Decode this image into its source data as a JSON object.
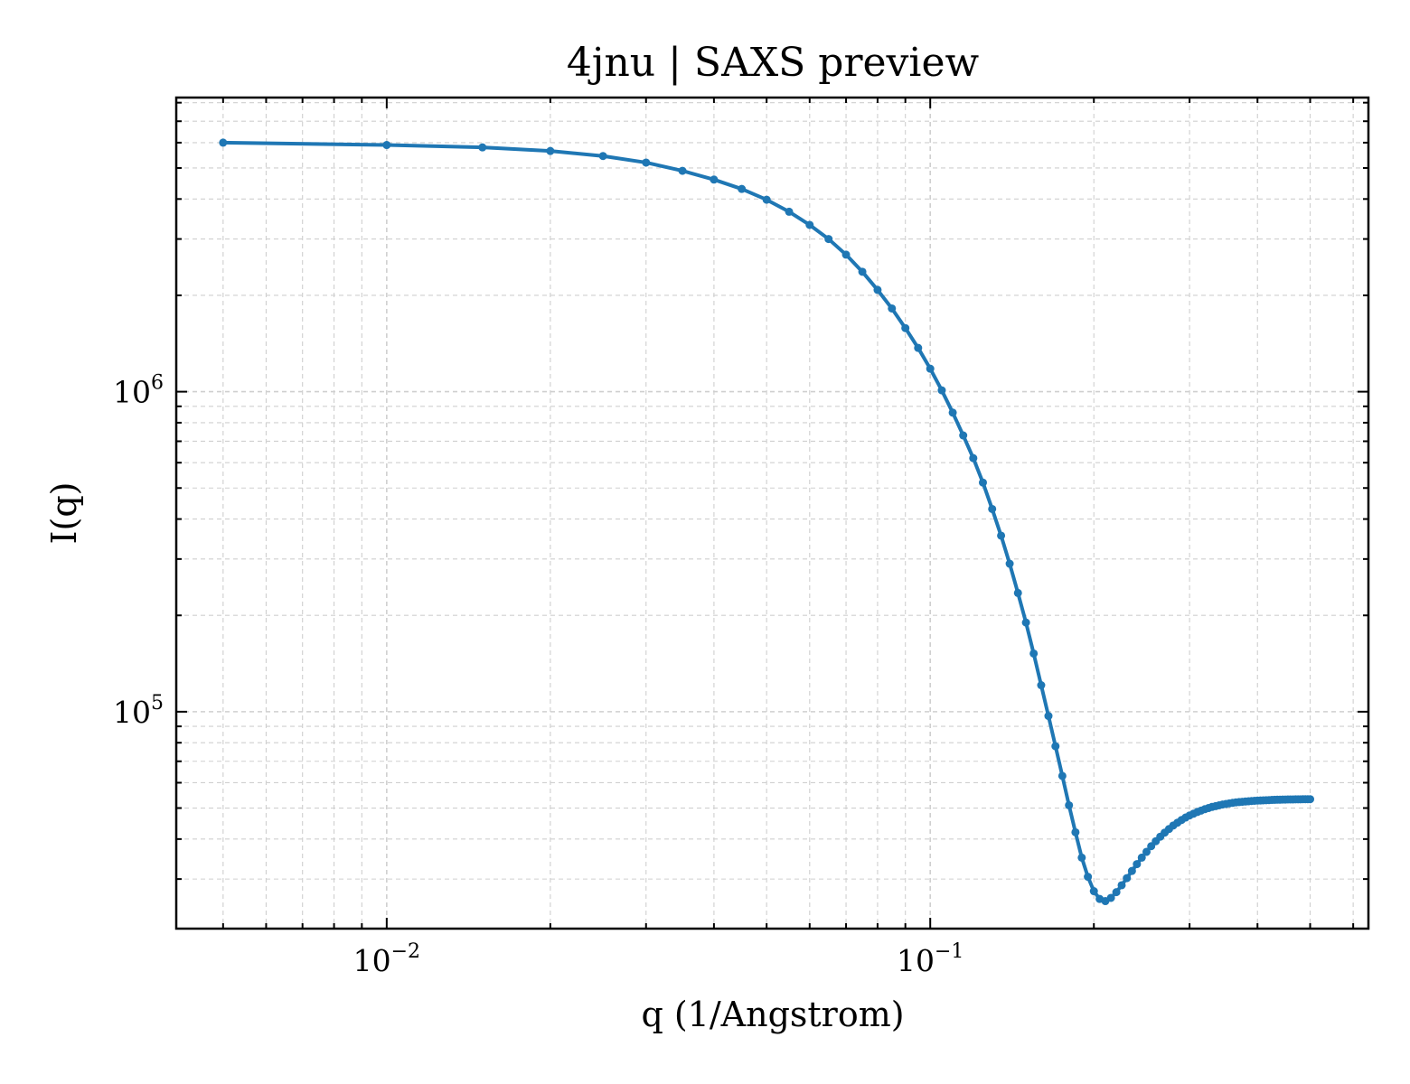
{
  "chart_data": {
    "type": "line",
    "title": "4jnu | SAXS preview",
    "xlabel": "q (1/Angstrom)",
    "ylabel": "I(q)",
    "xscale": "log",
    "yscale": "log",
    "xlim": [
      0.0041,
      0.64
    ],
    "ylim": [
      21000,
      8300000
    ],
    "grid": true,
    "legend": "none",
    "x_ticks": [
      {
        "value": 0.01,
        "base": "10",
        "exp": "−2"
      },
      {
        "value": 0.1,
        "base": "10",
        "exp": "−1"
      }
    ],
    "y_ticks": [
      {
        "value": 100000,
        "base": "10",
        "exp": "5"
      },
      {
        "value": 1000000,
        "base": "10",
        "exp": "6"
      }
    ],
    "series": [
      {
        "color": "#1f77b4",
        "marker": "circle",
        "x": [
          0.005,
          0.01,
          0.015,
          0.02,
          0.025,
          0.03,
          0.035,
          0.04,
          0.045,
          0.05,
          0.055,
          0.06,
          0.065,
          0.07,
          0.075,
          0.08,
          0.085,
          0.09,
          0.095,
          0.1,
          0.105,
          0.11,
          0.115,
          0.12,
          0.125,
          0.13,
          0.135,
          0.14,
          0.145,
          0.15,
          0.155,
          0.16,
          0.165,
          0.17,
          0.175,
          0.18,
          0.185,
          0.19,
          0.195,
          0.2,
          0.205,
          0.21,
          0.215,
          0.22,
          0.225,
          0.23,
          0.235,
          0.24,
          0.245,
          0.25,
          0.255,
          0.26,
          0.265,
          0.27,
          0.275,
          0.28,
          0.285,
          0.29,
          0.295,
          0.3,
          0.305,
          0.31,
          0.315,
          0.32,
          0.325,
          0.33,
          0.335,
          0.34,
          0.345,
          0.35,
          0.355,
          0.36,
          0.365,
          0.37,
          0.375,
          0.38,
          0.385,
          0.39,
          0.395,
          0.4,
          0.405,
          0.41,
          0.415,
          0.42,
          0.425,
          0.43,
          0.435,
          0.44,
          0.445,
          0.45,
          0.455,
          0.46,
          0.465,
          0.47,
          0.475,
          0.48,
          0.485,
          0.49,
          0.495,
          0.5
        ],
        "y": [
          6000000,
          5900000,
          5800000,
          5650000,
          5450000,
          5200000,
          4900000,
          4600000,
          4300000,
          3980000,
          3650000,
          3320000,
          3000000,
          2680000,
          2370000,
          2080000,
          1820000,
          1580000,
          1370000,
          1180000,
          1010000,
          860000,
          730000,
          620000,
          520000,
          430000,
          355000,
          290000,
          235000,
          190000,
          152000,
          121000,
          97000,
          78000,
          63000,
          51000,
          42000,
          35000,
          30500,
          27500,
          26000,
          25600,
          26200,
          27300,
          28700,
          30200,
          31800,
          33400,
          35000,
          36500,
          38000,
          39400,
          40700,
          41900,
          43000,
          44100,
          45000,
          45900,
          46700,
          47400,
          48000,
          48600,
          49100,
          49600,
          50000,
          50400,
          50700,
          51000,
          51300,
          51500,
          51700,
          51900,
          52100,
          52200,
          52300,
          52400,
          52500,
          52600,
          52700,
          52750,
          52800,
          52850,
          52900,
          52950,
          53000,
          53050,
          53100,
          53100,
          53150,
          53150,
          53200,
          53200,
          53200,
          53250,
          53250,
          53250,
          53300,
          53300,
          53300,
          53300
        ]
      }
    ]
  }
}
